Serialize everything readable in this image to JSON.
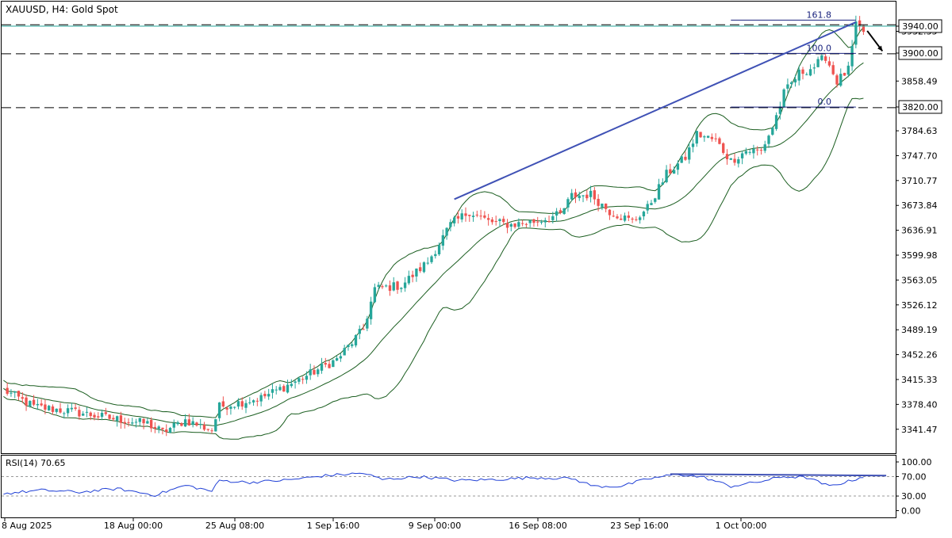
{
  "window": {
    "title": "XAUUSD, H4:  Gold Spot",
    "symbol": "XAUUSD",
    "timeframe": "H4",
    "description": "Gold Spot"
  },
  "colors": {
    "bull": "#26a69a",
    "bear": "#ef5350",
    "bands": "#1b5e20",
    "trendline": "#3f51b5",
    "fibo": "#1a237e",
    "rsi_line": "#1f3fd6",
    "axis": "#000000",
    "grid_dash": "#000000"
  },
  "chart_data": [
    {
      "type": "candlestick",
      "title": "XAUUSD, H4:  Gold Spot",
      "ylim": [
        3320.0,
        3960.0
      ],
      "y_ticks": [
        "3341.47",
        "3378.40",
        "3415.33",
        "3452.26",
        "3489.19",
        "3526.12",
        "3563.05",
        "3599.98",
        "3636.91",
        "3673.84",
        "3710.77",
        "3747.70",
        "3784.63",
        "3820.00",
        "3858.49",
        "3900.00",
        "3932.35",
        "3940.00"
      ],
      "x_ticks": [
        "8 Aug 2025",
        "18 Aug 00:00",
        "25 Aug 08:00",
        "1 Sep 16:00",
        "9 Sep 00:00",
        "16 Sep 08:00",
        "23 Sep 16:00",
        "1 Oct 00:00"
      ],
      "price_labels": [
        {
          "text": "3940.00",
          "value": 3940.0
        },
        {
          "text": "3900.00",
          "value": 3900.0
        },
        {
          "text": "3820.00",
          "value": 3820.0
        }
      ],
      "horizontal_levels": [
        3942.0,
        3899.0,
        3819.0
      ],
      "fibonacci": {
        "levels": [
          {
            "label": "161.8",
            "value": 3949.0
          },
          {
            "label": "100.0",
            "value": 3899.5
          },
          {
            "label": "0.0",
            "value": 3819.8
          }
        ]
      },
      "trendline": {
        "from": {
          "bar": 119,
          "price": 3683.0
        },
        "to": {
          "bar": 225,
          "price": 3946.0
        }
      },
      "arrow_annotation": {
        "from": {
          "bar": 228,
          "price": 3933.0
        },
        "to": {
          "bar": 232,
          "price": 3903.0
        }
      },
      "overlays": [
        "Bollinger Bands"
      ],
      "close_points": [
        {
          "bar": 0,
          "value": 3400
        },
        {
          "bar": 8,
          "value": 3375
        },
        {
          "bar": 18,
          "value": 3368
        },
        {
          "bar": 28,
          "value": 3358
        },
        {
          "bar": 38,
          "value": 3350
        },
        {
          "bar": 42,
          "value": 3337
        },
        {
          "bar": 48,
          "value": 3355
        },
        {
          "bar": 55,
          "value": 3340
        },
        {
          "bar": 57,
          "value": 3375
        },
        {
          "bar": 68,
          "value": 3388
        },
        {
          "bar": 78,
          "value": 3415
        },
        {
          "bar": 88,
          "value": 3445
        },
        {
          "bar": 95,
          "value": 3490
        },
        {
          "bar": 98,
          "value": 3550
        },
        {
          "bar": 105,
          "value": 3555
        },
        {
          "bar": 112,
          "value": 3590
        },
        {
          "bar": 118,
          "value": 3645
        },
        {
          "bar": 123,
          "value": 3665
        },
        {
          "bar": 128,
          "value": 3650
        },
        {
          "bar": 134,
          "value": 3645
        },
        {
          "bar": 140,
          "value": 3650
        },
        {
          "bar": 147,
          "value": 3660
        },
        {
          "bar": 150,
          "value": 3688
        },
        {
          "bar": 155,
          "value": 3690
        },
        {
          "bar": 160,
          "value": 3665
        },
        {
          "bar": 166,
          "value": 3650
        },
        {
          "bar": 170,
          "value": 3670
        },
        {
          "bar": 175,
          "value": 3720
        },
        {
          "bar": 180,
          "value": 3745
        },
        {
          "bar": 183,
          "value": 3780
        },
        {
          "bar": 188,
          "value": 3770
        },
        {
          "bar": 192,
          "value": 3740
        },
        {
          "bar": 196,
          "value": 3755
        },
        {
          "bar": 200,
          "value": 3755
        },
        {
          "bar": 203,
          "value": 3790
        },
        {
          "bar": 206,
          "value": 3840
        },
        {
          "bar": 210,
          "value": 3870
        },
        {
          "bar": 214,
          "value": 3880
        },
        {
          "bar": 217,
          "value": 3895
        },
        {
          "bar": 220,
          "value": 3858
        },
        {
          "bar": 223,
          "value": 3875
        },
        {
          "bar": 225,
          "value": 3940
        },
        {
          "bar": 227,
          "value": 3932
        }
      ]
    },
    {
      "type": "line",
      "title": "RSI(14) 70.65",
      "indicator": "RSI(14)",
      "last_value": "70.65",
      "ylim": [
        0,
        100
      ],
      "y_ticks": [
        "100.00",
        "70.00",
        "30.00",
        "0.00"
      ],
      "levels": [
        70,
        30
      ],
      "divergence_line": {
        "from": {
          "bar": 176,
          "value": 75
        },
        "to": {
          "bar": 233,
          "value": 72
        }
      },
      "points": [
        {
          "bar": 0,
          "value": 35
        },
        {
          "bar": 10,
          "value": 42
        },
        {
          "bar": 20,
          "value": 38
        },
        {
          "bar": 30,
          "value": 45
        },
        {
          "bar": 40,
          "value": 32
        },
        {
          "bar": 48,
          "value": 52
        },
        {
          "bar": 55,
          "value": 40
        },
        {
          "bar": 57,
          "value": 62
        },
        {
          "bar": 65,
          "value": 58
        },
        {
          "bar": 75,
          "value": 63
        },
        {
          "bar": 85,
          "value": 72
        },
        {
          "bar": 95,
          "value": 77
        },
        {
          "bar": 100,
          "value": 64
        },
        {
          "bar": 110,
          "value": 70
        },
        {
          "bar": 120,
          "value": 62
        },
        {
          "bar": 130,
          "value": 64
        },
        {
          "bar": 140,
          "value": 68
        },
        {
          "bar": 150,
          "value": 66
        },
        {
          "bar": 156,
          "value": 50
        },
        {
          "bar": 163,
          "value": 50
        },
        {
          "bar": 170,
          "value": 65
        },
        {
          "bar": 178,
          "value": 75
        },
        {
          "bar": 185,
          "value": 68
        },
        {
          "bar": 192,
          "value": 50
        },
        {
          "bar": 200,
          "value": 60
        },
        {
          "bar": 206,
          "value": 70
        },
        {
          "bar": 212,
          "value": 68
        },
        {
          "bar": 218,
          "value": 50
        },
        {
          "bar": 223,
          "value": 60
        },
        {
          "bar": 227,
          "value": 70
        }
      ]
    }
  ]
}
